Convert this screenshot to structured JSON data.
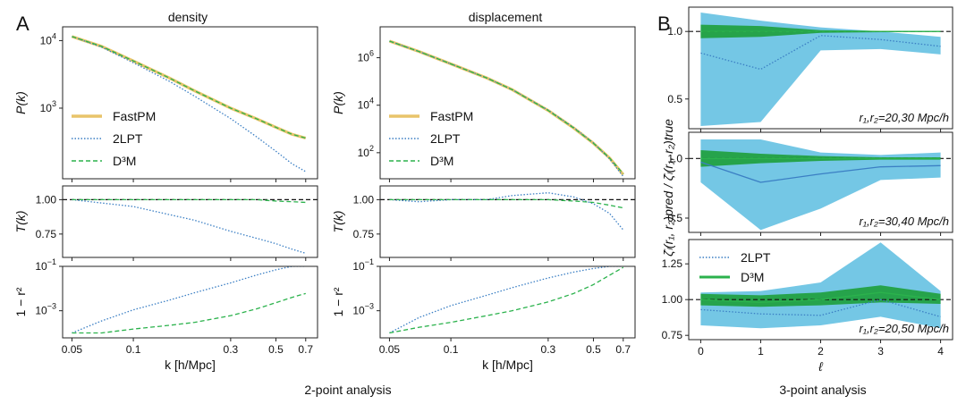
{
  "figure": {
    "panel_a_letter": "A",
    "panel_b_letter": "B",
    "caption_left": "2-point analysis",
    "caption_right": "3-point analysis",
    "title_density": "density",
    "title_displacement": "displacement"
  },
  "colors": {
    "fastpm": "#e8c46a",
    "lpt": "#3b7fc4",
    "d3m": "#2bb24c",
    "band_2lpt": "#5cbde0",
    "band_d3m": "#1e9e3a"
  },
  "chart_data": [
    {
      "id": "density-power",
      "type": "line",
      "title": "density",
      "xlabel": "",
      "ylabel": "P(k)",
      "xscale": "log",
      "yscale": "log",
      "xlim": [
        0.045,
        0.8
      ],
      "ylim": [
        90,
        16000
      ],
      "ytick_labels": [
        "10^3",
        "10^4"
      ],
      "legend": {
        "placement": "lower-left",
        "entries": [
          "FastPM",
          "2LPT",
          "D³M"
        ]
      },
      "x": [
        0.05,
        0.07,
        0.1,
        0.15,
        0.2,
        0.3,
        0.4,
        0.5,
        0.6,
        0.7
      ],
      "series": [
        {
          "name": "FastPM",
          "style": "solid-thick",
          "values": [
            11500,
            8200,
            5000,
            2800,
            1800,
            1000,
            700,
            520,
            410,
            360
          ]
        },
        {
          "name": "2LPT",
          "style": "dotted",
          "values": [
            11500,
            8000,
            4700,
            2500,
            1500,
            700,
            380,
            230,
            150,
            115
          ]
        },
        {
          "name": "D³M",
          "style": "dashed",
          "values": [
            11500,
            8200,
            5000,
            2800,
            1800,
            1000,
            700,
            520,
            410,
            360
          ]
        }
      ]
    },
    {
      "id": "density-transfer",
      "type": "line",
      "ylabel": "T(k)",
      "xscale": "log",
      "xlim": [
        0.045,
        0.8
      ],
      "ylim": [
        0.58,
        1.1
      ],
      "ytick_labels": [
        "0.75",
        "1.00"
      ],
      "reference_line": 1.0,
      "x": [
        0.05,
        0.1,
        0.2,
        0.3,
        0.4,
        0.5,
        0.6,
        0.7
      ],
      "series": [
        {
          "name": "2LPT",
          "style": "dotted",
          "values": [
            1.0,
            0.95,
            0.85,
            0.77,
            0.72,
            0.68,
            0.64,
            0.61
          ]
        },
        {
          "name": "D³M",
          "style": "dashed",
          "values": [
            1.0,
            1.0,
            1.0,
            1.0,
            1.0,
            0.99,
            0.985,
            0.98
          ]
        }
      ]
    },
    {
      "id": "density-decorrelation",
      "type": "line",
      "ylabel": "1 − r²",
      "xlabel": "k [h/Mpc]",
      "xscale": "log",
      "yscale": "log",
      "xlim": [
        0.045,
        0.8
      ],
      "ylim": [
        6e-05,
        0.1
      ],
      "xtick_labels": [
        "0.05",
        "0.1",
        "0.3",
        "0.5",
        "0.7"
      ],
      "ytick_labels": [
        "10^-3",
        "10^-1"
      ],
      "x": [
        0.05,
        0.07,
        0.1,
        0.15,
        0.2,
        0.3,
        0.4,
        0.5,
        0.6,
        0.7
      ],
      "series": [
        {
          "name": "2LPT",
          "style": "dotted",
          "values": [
            0.0001,
            0.00035,
            0.0011,
            0.003,
            0.0065,
            0.018,
            0.04,
            0.07,
            0.1,
            0.1
          ]
        },
        {
          "name": "D³M",
          "style": "dashed",
          "values": [
            0.0001,
            0.0001,
            0.00015,
            0.00022,
            0.0003,
            0.0006,
            0.0012,
            0.0023,
            0.004,
            0.006
          ]
        }
      ]
    },
    {
      "id": "displacement-power",
      "type": "line",
      "title": "displacement",
      "ylabel": "P(k)",
      "xscale": "log",
      "yscale": "log",
      "xlim": [
        0.045,
        0.8
      ],
      "ylim": [
        8,
        20000000
      ],
      "ytick_labels": [
        "10^2",
        "10^4",
        "10^6"
      ],
      "legend": {
        "placement": "lower-left",
        "entries": [
          "FastPM",
          "2LPT",
          "D³M"
        ]
      },
      "x": [
        0.05,
        0.07,
        0.1,
        0.15,
        0.2,
        0.3,
        0.4,
        0.5,
        0.6,
        0.7
      ],
      "series": [
        {
          "name": "FastPM",
          "style": "solid-thick",
          "values": [
            5000000,
            1800000,
            550000,
            140000,
            45000,
            6000,
            1100,
            250,
            60,
            12
          ]
        },
        {
          "name": "2LPT",
          "style": "dotted",
          "values": [
            5000000,
            1800000,
            550000,
            140000,
            45000,
            6200,
            1150,
            260,
            55,
            10
          ]
        },
        {
          "name": "D³M",
          "style": "dashed",
          "values": [
            5000000,
            1800000,
            550000,
            140000,
            45000,
            6000,
            1100,
            250,
            60,
            13
          ]
        }
      ]
    },
    {
      "id": "displacement-transfer",
      "type": "line",
      "ylabel": "T(k)",
      "xscale": "log",
      "xlim": [
        0.045,
        0.8
      ],
      "ylim": [
        0.58,
        1.1
      ],
      "ytick_labels": [
        "0.75",
        "1.00"
      ],
      "reference_line": 1.0,
      "x": [
        0.05,
        0.07,
        0.1,
        0.15,
        0.2,
        0.3,
        0.4,
        0.5,
        0.6,
        0.7
      ],
      "series": [
        {
          "name": "2LPT",
          "style": "dotted",
          "values": [
            1.0,
            0.985,
            1.0,
            1.0,
            1.03,
            1.05,
            1.02,
            0.97,
            0.9,
            0.78
          ]
        },
        {
          "name": "D³M",
          "style": "dashed",
          "values": [
            1.0,
            1.0,
            1.0,
            1.0,
            1.0,
            1.0,
            0.99,
            0.98,
            0.96,
            0.94
          ]
        }
      ]
    },
    {
      "id": "displacement-decorrelation",
      "type": "line",
      "ylabel": "1 − r²",
      "xlabel": "k [h/Mpc]",
      "xscale": "log",
      "yscale": "log",
      "xlim": [
        0.045,
        0.8
      ],
      "ylim": [
        6e-05,
        0.1
      ],
      "xtick_labels": [
        "0.05",
        "0.1",
        "0.3",
        "0.5",
        "0.7"
      ],
      "ytick_labels": [
        "10^-3",
        "10^-1"
      ],
      "x": [
        0.05,
        0.07,
        0.1,
        0.15,
        0.2,
        0.3,
        0.4,
        0.5,
        0.6,
        0.7
      ],
      "series": [
        {
          "name": "2LPT",
          "style": "dotted",
          "values": [
            0.0001,
            0.0005,
            0.0017,
            0.005,
            0.011,
            0.03,
            0.055,
            0.08,
            0.1,
            0.1
          ]
        },
        {
          "name": "D³M",
          "style": "dashed",
          "values": [
            0.0001,
            0.00018,
            0.0003,
            0.0006,
            0.001,
            0.0025,
            0.006,
            0.015,
            0.04,
            0.09
          ]
        }
      ]
    },
    {
      "id": "three-point-20-30",
      "type": "area",
      "annotation": "r₁,r₂=20,30 Mpc/h",
      "xlim": [
        -0.2,
        4.2
      ],
      "ylim": [
        0.28,
        1.18
      ],
      "ytick_labels": [
        "0.5",
        "1.0"
      ],
      "reference_line": 1.0,
      "x": [
        0,
        1,
        2,
        3,
        4
      ],
      "series": [
        {
          "name": "2LPT",
          "style": "dotted",
          "values": [
            0.84,
            0.72,
            0.97,
            0.94,
            0.89
          ],
          "band_low": [
            0.3,
            0.33,
            0.86,
            0.87,
            0.83
          ],
          "band_high": [
            1.14,
            1.08,
            1.03,
            1.0,
            0.96
          ]
        },
        {
          "name": "D³M",
          "style": "solid",
          "values": [
            1.0,
            1.0,
            1.0,
            1.0,
            1.0
          ],
          "band_low": [
            0.95,
            0.96,
            0.99,
            0.995,
            0.997
          ],
          "band_high": [
            1.05,
            1.04,
            1.01,
            1.005,
            1.003
          ]
        }
      ]
    },
    {
      "id": "three-point-30-40",
      "type": "area",
      "annotation": "r₁,r₂=30,40 Mpc/h",
      "ylabel": "ζ̄ₗ(r₁, r₂)pred / ζ̄ₗ(r₁, r₂)true",
      "xlim": [
        -0.2,
        4.2
      ],
      "ylim": [
        0.38,
        1.22
      ],
      "ytick_labels": [
        "0.5",
        "1.0"
      ],
      "reference_line": 1.0,
      "x": [
        0,
        1,
        2,
        3,
        4
      ],
      "series": [
        {
          "name": "2LPT",
          "style": "solid",
          "values": [
            0.97,
            0.8,
            0.87,
            0.93,
            0.94
          ],
          "band_low": [
            0.8,
            0.4,
            0.58,
            0.82,
            0.84
          ],
          "band_high": [
            1.16,
            1.16,
            1.05,
            1.03,
            1.05
          ]
        },
        {
          "name": "D³M",
          "style": "solid",
          "values": [
            1.0,
            1.0,
            1.0,
            1.0,
            1.0
          ],
          "band_low": [
            0.93,
            0.96,
            0.98,
            0.99,
            0.99
          ],
          "band_high": [
            1.07,
            1.04,
            1.02,
            1.01,
            1.01
          ]
        }
      ]
    },
    {
      "id": "three-point-20-50",
      "type": "area",
      "annotation": "r₁,r₂=20,50 Mpc/h",
      "xlabel": "ℓ",
      "xlim": [
        -0.2,
        4.2
      ],
      "ylim": [
        0.72,
        1.42
      ],
      "xtick_labels": [
        "0",
        "1",
        "2",
        "3",
        "4"
      ],
      "ytick_labels": [
        "0.75",
        "1.00",
        "1.25"
      ],
      "reference_line": 1.0,
      "legend": {
        "placement": "top-left",
        "entries": [
          "2LPT",
          "D³M"
        ]
      },
      "x": [
        0,
        1,
        2,
        3,
        4
      ],
      "series": [
        {
          "name": "2LPT",
          "style": "dotted",
          "values": [
            0.93,
            0.9,
            0.89,
            1.0,
            0.88
          ],
          "band_low": [
            0.82,
            0.8,
            0.82,
            0.88,
            0.8
          ],
          "band_high": [
            1.05,
            1.06,
            1.12,
            1.4,
            1.06
          ]
        },
        {
          "name": "D³M",
          "style": "solid",
          "values": [
            1.0,
            0.98,
            1.0,
            1.05,
            1.0
          ],
          "band_low": [
            0.96,
            0.95,
            0.96,
            0.98,
            0.97
          ],
          "band_high": [
            1.04,
            1.03,
            1.05,
            1.1,
            1.04
          ]
        }
      ]
    }
  ]
}
